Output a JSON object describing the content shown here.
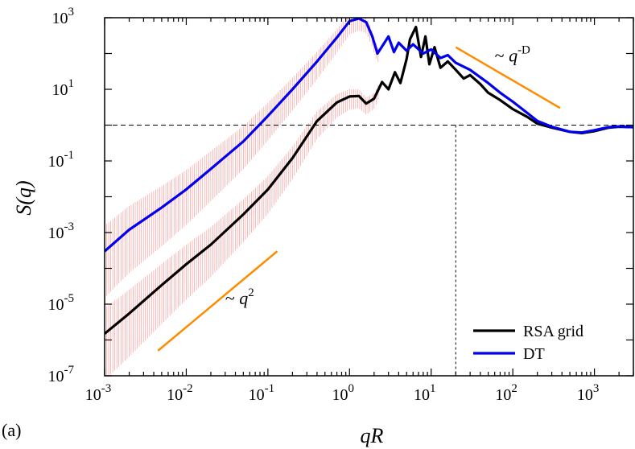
{
  "chart_data": {
    "type": "line",
    "panel_label": "(a)",
    "xlabel": "qR",
    "ylabel": "S(q)",
    "xscale": "log",
    "yscale": "log",
    "xlim": [
      0.001,
      3000
    ],
    "ylim": [
      1e-07,
      1000
    ],
    "x_ticks": [
      {
        "value": 0.001,
        "base": "10",
        "exp": "-3"
      },
      {
        "value": 0.01,
        "base": "10",
        "exp": "-2"
      },
      {
        "value": 0.1,
        "base": "10",
        "exp": "-1"
      },
      {
        "value": 1,
        "base": "10",
        "exp": "0"
      },
      {
        "value": 10,
        "base": "10",
        "exp": "1"
      },
      {
        "value": 100,
        "base": "10",
        "exp": "2"
      },
      {
        "value": 1000,
        "base": "10",
        "exp": "3"
      }
    ],
    "y_ticks": [
      {
        "value": 1e-07,
        "base": "10",
        "exp": "-7"
      },
      {
        "value": 1e-05,
        "base": "10",
        "exp": "-5"
      },
      {
        "value": 0.001,
        "base": "10",
        "exp": "-3"
      },
      {
        "value": 0.1,
        "base": "10",
        "exp": "-1"
      },
      {
        "value": 10,
        "base": "10",
        "exp": "1"
      },
      {
        "value": 1000,
        "base": "10",
        "exp": "3"
      }
    ],
    "series": [
      {
        "name": "RSA grid",
        "color": "#000000",
        "points": [
          [
            0.001,
            1.5e-06
          ],
          [
            0.002,
            5.5e-06
          ],
          [
            0.005,
            3.4e-05
          ],
          [
            0.01,
            0.00013
          ],
          [
            0.02,
            0.00046
          ],
          [
            0.05,
            0.0032
          ],
          [
            0.1,
            0.016
          ],
          [
            0.2,
            0.12
          ],
          [
            0.4,
            1.3
          ],
          [
            0.7,
            4.3
          ],
          [
            1.0,
            6.3
          ],
          [
            1.3,
            6.5
          ],
          [
            1.6,
            4.0
          ],
          [
            2.0,
            5.5
          ],
          [
            2.5,
            16
          ],
          [
            3.0,
            10
          ],
          [
            3.6,
            30
          ],
          [
            4.2,
            15
          ],
          [
            5.0,
            70
          ],
          [
            5.5,
            250
          ],
          [
            6.5,
            550
          ],
          [
            7.5,
            80
          ],
          [
            8.5,
            300
          ],
          [
            9.5,
            50
          ],
          [
            11,
            150
          ],
          [
            13,
            40
          ],
          [
            16,
            60
          ],
          [
            20,
            35
          ],
          [
            25,
            20
          ],
          [
            30,
            25
          ],
          [
            40,
            14
          ],
          [
            50,
            8
          ],
          [
            70,
            5
          ],
          [
            100,
            2.8
          ],
          [
            150,
            1.7
          ],
          [
            200,
            1.1
          ],
          [
            300,
            0.85
          ],
          [
            500,
            0.65
          ],
          [
            700,
            0.6
          ],
          [
            1000,
            0.68
          ],
          [
            1500,
            0.85
          ],
          [
            2000,
            0.9
          ],
          [
            3000,
            0.88
          ]
        ]
      },
      {
        "name": "DT",
        "color": "#0000ee",
        "points": [
          [
            0.001,
            0.0003
          ],
          [
            0.002,
            0.0012
          ],
          [
            0.005,
            0.005
          ],
          [
            0.01,
            0.016
          ],
          [
            0.02,
            0.06
          ],
          [
            0.05,
            0.35
          ],
          [
            0.1,
            1.8
          ],
          [
            0.2,
            10
          ],
          [
            0.4,
            60
          ],
          [
            0.7,
            280
          ],
          [
            1.0,
            800
          ],
          [
            1.3,
            950
          ],
          [
            1.6,
            750
          ],
          [
            1.9,
            300
          ],
          [
            2.2,
            100
          ],
          [
            2.6,
            180
          ],
          [
            3.0,
            300
          ],
          [
            3.5,
            110
          ],
          [
            4.0,
            200
          ],
          [
            5.0,
            120
          ],
          [
            6.0,
            180
          ],
          [
            8.0,
            100
          ],
          [
            10,
            130
          ],
          [
            13,
            75
          ],
          [
            16,
            90
          ],
          [
            20,
            55
          ],
          [
            30,
            35
          ],
          [
            50,
            15
          ],
          [
            70,
            8
          ],
          [
            100,
            4.5
          ],
          [
            150,
            2.2
          ],
          [
            200,
            1.3
          ],
          [
            300,
            0.9
          ],
          [
            500,
            0.65
          ],
          [
            700,
            0.62
          ],
          [
            1000,
            0.72
          ],
          [
            1500,
            0.88
          ],
          [
            2000,
            0.92
          ],
          [
            3000,
            0.88
          ]
        ]
      }
    ],
    "reference_lines": [
      {
        "type": "horizontal",
        "y": 1,
        "style": "dashed"
      },
      {
        "type": "vertical",
        "x": 20,
        "style": "dashed"
      }
    ],
    "guide_lines": [
      {
        "label_base": "~ q",
        "label_exp": "2",
        "from": [
          0.0045,
          5e-07
        ],
        "to": [
          0.13,
          0.0003
        ],
        "color": "#ff8c00",
        "label_at": [
          0.03,
          1e-05
        ]
      },
      {
        "label_base": "~ q",
        "label_exp": "-D",
        "from": [
          20,
          150
        ],
        "to": [
          380,
          3
        ],
        "color": "#ff8c00",
        "label_at": [
          60,
          60
        ]
      }
    ],
    "legend": {
      "placement": "bottom-right",
      "entries": [
        {
          "label": "RSA grid",
          "color": "#000000"
        },
        {
          "label": "DT",
          "color": "#0000ee"
        }
      ]
    },
    "error_bar_color": "#ff9999"
  }
}
